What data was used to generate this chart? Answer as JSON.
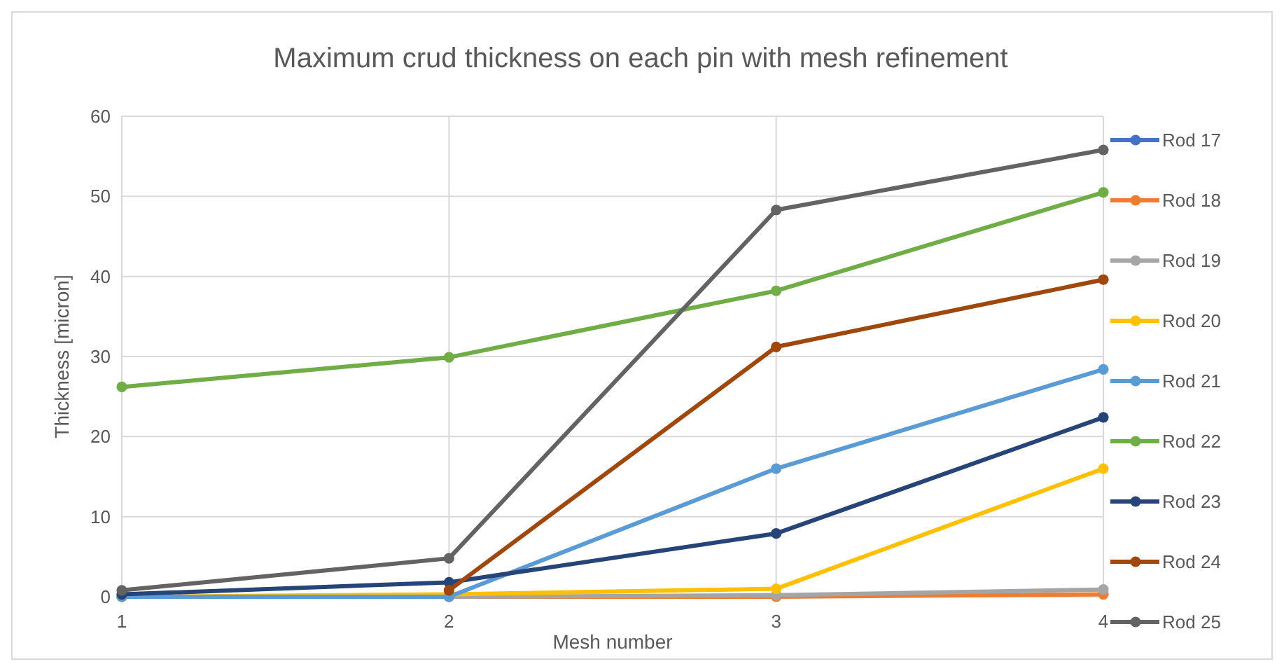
{
  "chart_data": {
    "type": "line",
    "title": "Maximum crud thickness on each pin with mesh refinement",
    "xlabel": "Mesh number",
    "ylabel": "Thickness [micron]",
    "x": [
      1,
      2,
      3,
      4
    ],
    "xlim": [
      1,
      4
    ],
    "xticks": [
      1,
      2,
      3,
      4
    ],
    "ylim": [
      0,
      60
    ],
    "yticks": [
      0,
      10,
      20,
      30,
      40,
      50,
      60
    ],
    "grid": true,
    "legend": "right",
    "marker": "circle",
    "line_style": "solid",
    "series": [
      {
        "name": "Rod 17",
        "color": "#4472c4",
        "values": [
          null,
          null,
          null,
          null
        ]
      },
      {
        "name": "Rod 18",
        "color": "#ed7d31",
        "values": [
          0,
          0,
          0,
          0.3
        ]
      },
      {
        "name": "Rod 19",
        "color": "#a5a5a5",
        "values": [
          0,
          0,
          0.2,
          0.9
        ]
      },
      {
        "name": "Rod 20",
        "color": "#ffc000",
        "values": [
          0,
          0.3,
          1,
          16
        ]
      },
      {
        "name": "Rod 21",
        "color": "#5b9bd5",
        "values": [
          0,
          0,
          16,
          28.4
        ]
      },
      {
        "name": "Rod 22",
        "color": "#70ad47",
        "values": [
          26.2,
          29.9,
          38.2,
          50.5
        ]
      },
      {
        "name": "Rod 23",
        "color": "#264478",
        "values": [
          0.3,
          1.8,
          7.9,
          22.4
        ]
      },
      {
        "name": "Rod 24",
        "color": "#9e480e",
        "values": [
          null,
          0.8,
          31.2,
          39.6
        ]
      },
      {
        "name": "Rod 25",
        "color": "#636363",
        "values": [
          0.8,
          4.8,
          48.3,
          55.8
        ]
      }
    ]
  }
}
